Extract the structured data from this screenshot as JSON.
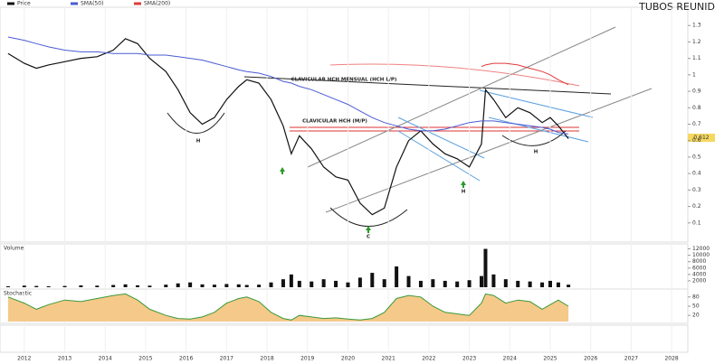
{
  "chart_data": [
    {
      "type": "line",
      "title": "TUBOS REUNID",
      "annotations": [
        "CLAVICULAR HCH MENSUAL (HCH L/P)",
        "CLAVICULAR HCH (M/P)",
        "H",
        "H",
        "C",
        "H"
      ],
      "x": [
        2011.6,
        2012.0,
        2012.3,
        2012.6,
        2013.0,
        2013.4,
        2013.8,
        2014.2,
        2014.5,
        2014.8,
        2015.1,
        2015.5,
        2015.8,
        2016.1,
        2016.4,
        2016.7,
        2017.0,
        2017.3,
        2017.5,
        2017.8,
        2018.1,
        2018.4,
        2018.6,
        2018.8,
        2019.1,
        2019.4,
        2019.7,
        2020.0,
        2020.3,
        2020.6,
        2020.9,
        2021.2,
        2021.5,
        2021.8,
        2022.1,
        2022.4,
        2022.7,
        2023.0,
        2023.3,
        2023.4,
        2023.6,
        2023.9,
        2024.2,
        2024.5,
        2024.8,
        2025.0,
        2025.2,
        2025.45
      ],
      "xlim": [
        2011.4,
        2028.4
      ],
      "xticks": [
        2012,
        2013,
        2014,
        2015,
        2016,
        2017,
        2018,
        2019,
        2020,
        2021,
        2022,
        2023,
        2024,
        2025,
        2026,
        2027,
        2028
      ],
      "ylim": [
        0,
        1.4
      ],
      "yticks": [
        0.1,
        0.2,
        0.3,
        0.4,
        0.5,
        0.6,
        0.7,
        0.8,
        0.9,
        1,
        1.1,
        1.2,
        1.3
      ],
      "series": [
        {
          "name": "Price",
          "color": "#111111",
          "values": [
            1.13,
            1.07,
            1.04,
            1.06,
            1.08,
            1.1,
            1.11,
            1.15,
            1.22,
            1.19,
            1.1,
            1.02,
            0.91,
            0.77,
            0.7,
            0.74,
            0.85,
            0.93,
            0.97,
            0.95,
            0.85,
            0.69,
            0.52,
            0.63,
            0.55,
            0.44,
            0.38,
            0.36,
            0.22,
            0.15,
            0.19,
            0.44,
            0.6,
            0.66,
            0.58,
            0.52,
            0.49,
            0.44,
            0.58,
            0.91,
            0.85,
            0.74,
            0.8,
            0.77,
            0.71,
            0.74,
            0.69,
            0.612
          ]
        },
        {
          "name": "SMA(50)",
          "color": "#4a5bd4",
          "values": [
            1.23,
            1.21,
            1.19,
            1.17,
            1.15,
            1.14,
            1.14,
            1.13,
            1.13,
            1.13,
            1.12,
            1.12,
            1.11,
            1.1,
            1.09,
            1.07,
            1.05,
            1.03,
            1.02,
            1.01,
            0.99,
            0.96,
            0.95,
            0.93,
            0.91,
            0.88,
            0.85,
            0.82,
            0.78,
            0.74,
            0.71,
            0.69,
            0.67,
            0.66,
            0.66,
            0.67,
            0.69,
            0.71,
            0.72,
            0.72,
            0.72,
            0.71,
            0.7,
            0.69,
            0.68,
            0.67,
            0.65,
            0.64
          ]
        },
        {
          "name": "SMA(200)",
          "color": "#e03a3a",
          "values": [
            null,
            null,
            null,
            null,
            null,
            null,
            null,
            null,
            null,
            null,
            null,
            null,
            null,
            null,
            null,
            null,
            null,
            null,
            null,
            null,
            null,
            null,
            null,
            null,
            null,
            null,
            null,
            null,
            null,
            null,
            null,
            null,
            null,
            null,
            null,
            null,
            null,
            null,
            1.05,
            1.06,
            1.07,
            1.07,
            1.06,
            1.04,
            1.02,
            1.0,
            0.97,
            0.94
          ]
        }
      ]
    },
    {
      "type": "bar",
      "title": "Volume",
      "ylim": [
        0,
        13000
      ],
      "yticks": [
        2000,
        4000,
        6000,
        8000,
        10000,
        12000
      ],
      "color": "#111111",
      "values": [
        300,
        500,
        400,
        300,
        400,
        600,
        500,
        700,
        900,
        600,
        500,
        800,
        1200,
        1500,
        900,
        800,
        1000,
        900,
        700,
        800,
        1500,
        2500,
        4000,
        2000,
        1800,
        2500,
        2000,
        1500,
        3000,
        4500,
        2500,
        6500,
        3500,
        2000,
        2500,
        2000,
        1800,
        2200,
        3500,
        12000,
        4000,
        2500,
        2000,
        1800,
        1500,
        2000,
        1500,
        800
      ]
    },
    {
      "type": "area",
      "title": "Stochastic",
      "ylim": [
        0,
        100
      ],
      "yticks": [
        20,
        50,
        80
      ],
      "color": "#f5c98a",
      "values": [
        80,
        60,
        40,
        55,
        70,
        65,
        75,
        85,
        90,
        70,
        40,
        20,
        10,
        8,
        15,
        30,
        60,
        75,
        80,
        65,
        30,
        10,
        5,
        20,
        15,
        10,
        12,
        8,
        5,
        10,
        30,
        75,
        85,
        80,
        50,
        30,
        25,
        20,
        60,
        90,
        85,
        60,
        70,
        65,
        40,
        55,
        70,
        50
      ]
    }
  ]
}
